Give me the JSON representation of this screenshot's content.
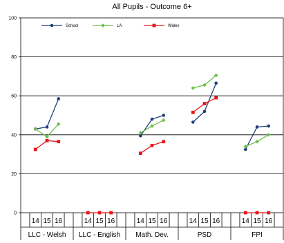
{
  "chart_data": {
    "type": "line",
    "title": "All Pupils - Outcome 6+",
    "xlabel": "",
    "ylabel": "",
    "ylim": [
      0,
      100
    ],
    "yticks": [
      0,
      20,
      40,
      60,
      80,
      100
    ],
    "grid": "horizontal",
    "legend_position": "top-left",
    "groups": [
      "LLC - Welsh",
      "LLC - English",
      "Math. Dev.",
      "PSD",
      "FPI"
    ],
    "years": [
      "14",
      "15",
      "16"
    ],
    "series": [
      {
        "name": "School",
        "color": "#1f3f7a",
        "marker": "circle",
        "values": [
          [
            43,
            44,
            58.5
          ],
          [
            null,
            null,
            null
          ],
          [
            39.5,
            48,
            50
          ],
          [
            46.5,
            52,
            66.5
          ],
          [
            32.5,
            44,
            44.5
          ]
        ]
      },
      {
        "name": "LA",
        "color": "#6cbf4a",
        "marker": "diamond",
        "values": [
          [
            43,
            39,
            45.5
          ],
          [
            null,
            null,
            null
          ],
          [
            41,
            44.5,
            47.5
          ],
          [
            64,
            65.5,
            70.5
          ],
          [
            34,
            36.5,
            40
          ]
        ]
      },
      {
        "name": "Wales",
        "color": "#e8161c",
        "marker": "square",
        "values": [
          [
            32.5,
            37,
            36.5
          ],
          [
            0,
            0,
            0
          ],
          [
            30.5,
            34.5,
            36.5
          ],
          [
            51.5,
            56,
            59
          ],
          [
            0,
            0,
            0
          ]
        ]
      }
    ]
  }
}
